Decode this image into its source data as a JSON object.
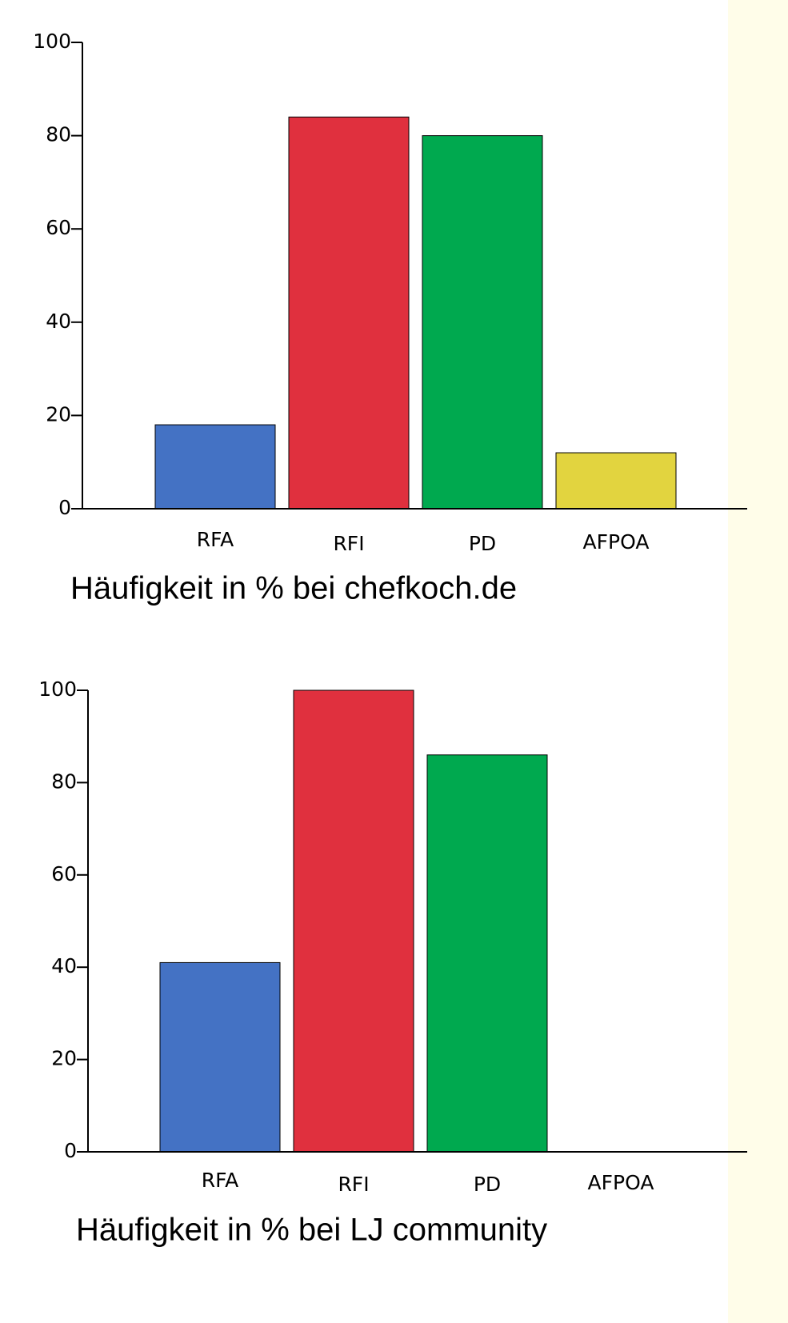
{
  "chart_data": [
    {
      "type": "bar",
      "title": "Häufigkeit in % bei chefkoch.de",
      "categories": [
        "RFA",
        "RFI",
        "PD",
        "AFPOA"
      ],
      "values": [
        18,
        84,
        80,
        12
      ],
      "colors": [
        "#4472c4",
        "#e0303e",
        "#00a94f",
        "#e2d43f"
      ],
      "ylim": [
        0,
        100
      ],
      "yticks": [
        0,
        20,
        40,
        60,
        80,
        100
      ]
    },
    {
      "type": "bar",
      "title": "Häufigkeit in % bei LJ community",
      "categories": [
        "RFA",
        "RFI",
        "PD",
        "AFPOA"
      ],
      "values": [
        41,
        100,
        86,
        0
      ],
      "colors": [
        "#4472c4",
        "#e0303e",
        "#00a94f",
        "#e2d43f"
      ],
      "ylim": [
        0,
        100
      ],
      "yticks": [
        0,
        20,
        40,
        60,
        80,
        100
      ]
    }
  ]
}
